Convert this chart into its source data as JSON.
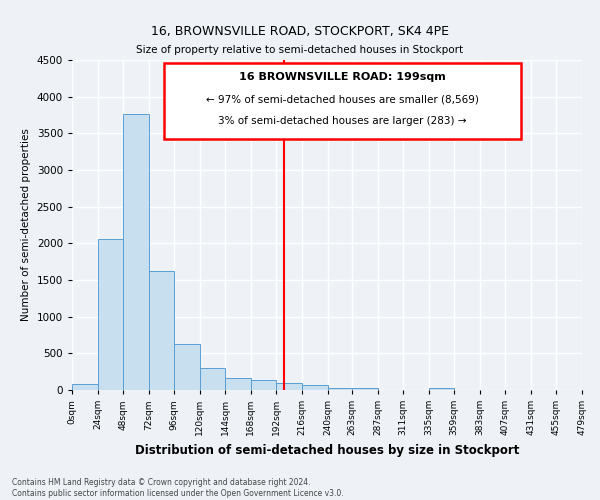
{
  "title": "16, BROWNSVILLE ROAD, STOCKPORT, SK4 4PE",
  "subtitle": "Size of property relative to semi-detached houses in Stockport",
  "xlabel": "Distribution of semi-detached houses by size in Stockport",
  "ylabel": "Number of semi-detached properties",
  "bin_labels": [
    "0sqm",
    "24sqm",
    "48sqm",
    "72sqm",
    "96sqm",
    "120sqm",
    "144sqm",
    "168sqm",
    "192sqm",
    "216sqm",
    "240sqm",
    "263sqm",
    "287sqm",
    "311sqm",
    "335sqm",
    "359sqm",
    "383sqm",
    "407sqm",
    "431sqm",
    "455sqm",
    "479sqm"
  ],
  "bar_values": [
    80,
    2060,
    3760,
    1620,
    630,
    295,
    170,
    130,
    100,
    65,
    30,
    25,
    0,
    0,
    30,
    0,
    0,
    0,
    0,
    0
  ],
  "bar_color": "#c8dff0",
  "bar_edge_color": "#5a9fd4",
  "property_line_x": 199,
  "bin_edges": [
    0,
    24,
    48,
    72,
    96,
    120,
    144,
    168,
    192,
    216,
    240,
    263,
    287,
    311,
    335,
    359,
    383,
    407,
    431,
    455,
    479
  ],
  "ylim": [
    0,
    4500
  ],
  "annotation_title": "16 BROWNSVILLE ROAD: 199sqm",
  "annotation_line1": "← 97% of semi-detached houses are smaller (8,569)",
  "annotation_line2": "3% of semi-detached houses are larger (283) →",
  "footer_line1": "Contains HM Land Registry data © Crown copyright and database right 2024.",
  "footer_line2": "Contains public sector information licensed under the Open Government Licence v3.0.",
  "bg_color": "#eef2f7",
  "grid_color": "#ffffff"
}
